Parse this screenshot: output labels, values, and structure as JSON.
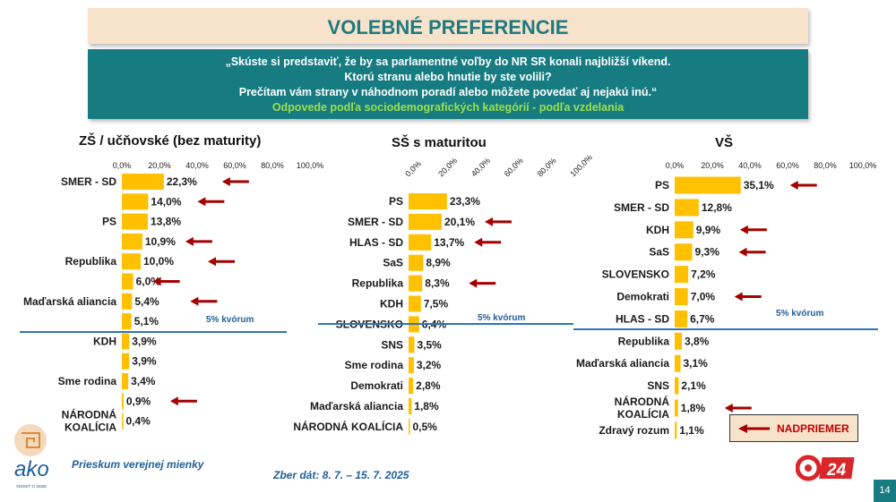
{
  "header": {
    "title": "VOLEBNÉ PREFERENCIE",
    "question_lines": [
      "„Skúste si predstaviť, že by sa parlamentné voľby do NR SR konali najbližší víkend.",
      "Ktorú stranu alebo hnutie by ste volili?",
      "Prečítam vám strany v náhodnom poradí alebo môžete povedať aj nejakú inú.“"
    ],
    "subtitle": "Odpovede podľa sociodemografických kategórií - podľa vzdelania"
  },
  "footer": {
    "survey": "Prieskum verejnej mienky",
    "date": "Zber dát: 8. 7. – 15. 7. 2025",
    "page": "14",
    "legend_label": "NADPRIEMER",
    "logo_text": "ako",
    "logo_tagline": "VEDIEŤ O SEBE",
    "brand_badge": "24"
  },
  "colors": {
    "bar": "#ffc000",
    "arrow": "#a40000",
    "line": "#2e75b6",
    "accent": "#167c82"
  },
  "chart_data": [
    {
      "type": "bar",
      "orientation": "horizontal",
      "title": "ZŠ / učňovské (bez maturity)",
      "xlim": [
        0,
        100
      ],
      "ticks": [
        "0,0%",
        "20,0%",
        "40,0%",
        "60,0%",
        "80,0%",
        "100,0%"
      ],
      "threshold_label": "5% kvórum",
      "threshold_after_index": 7,
      "categories": [
        "SMER - SD",
        "",
        "PS",
        "",
        "Republika",
        "",
        "Maďarská aliancia",
        "",
        "KDH",
        "",
        "Sme rodina",
        "",
        "NÁRODNÁ KOALÍCIA",
        ""
      ],
      "values": [
        22.3,
        14.0,
        13.8,
        10.9,
        10.0,
        6.0,
        5.4,
        5.1,
        3.9,
        3.9,
        3.4,
        0.9,
        0.4,
        null
      ],
      "labels": [
        "22,3%",
        "14,0%",
        "13,8%",
        "10,9%",
        "10,0%",
        "6,0%",
        "5,4%",
        "5,1%",
        "3,9%",
        "3,9%",
        "3,4%",
        "0,9%",
        "0,4%",
        ""
      ],
      "above_average": [
        true,
        true,
        false,
        true,
        true,
        true,
        true,
        false,
        false,
        false,
        false,
        true,
        false,
        false
      ]
    },
    {
      "type": "bar",
      "orientation": "horizontal",
      "title": "SŠ s maturitou",
      "xlim": [
        0,
        100
      ],
      "ticks": [
        "0,0%",
        "20,0%",
        "40,0%",
        "60,0%",
        "80,0%",
        "100,0%"
      ],
      "threshold_label": "5% kvórum",
      "threshold_after_index": 6,
      "categories": [
        "PS",
        "SMER - SD",
        "HLAS - SD",
        "SaS",
        "Republika",
        "KDH",
        "SLOVENSKO",
        "SNS",
        "Sme rodina",
        "Demokrati",
        "Maďarská aliancia",
        "NÁRODNÁ KOALÍCIA"
      ],
      "values": [
        23.3,
        20.1,
        13.7,
        8.9,
        8.3,
        7.5,
        6.4,
        3.5,
        3.2,
        2.8,
        1.8,
        0.5
      ],
      "labels": [
        "23,3%",
        "20,1%",
        "13,7%",
        "8,9%",
        "8,3%",
        "7,5%",
        "6,4%",
        "3,5%",
        "3,2%",
        "2,8%",
        "1,8%",
        "0,5%"
      ],
      "above_average": [
        false,
        true,
        true,
        false,
        true,
        false,
        false,
        false,
        false,
        false,
        false,
        false
      ]
    },
    {
      "type": "bar",
      "orientation": "horizontal",
      "title": "VŠ",
      "xlim": [
        0,
        100
      ],
      "ticks": [
        "0,0%",
        "20,0%",
        "40,0%",
        "60,0%",
        "80,0%",
        "100,0%"
      ],
      "threshold_label": "5% kvórum",
      "threshold_after_index": 6,
      "categories": [
        "PS",
        "SMER - SD",
        "KDH",
        "SaS",
        "SLOVENSKO",
        "Demokrati",
        "HLAS - SD",
        "Republika",
        "Maďarská aliancia",
        "SNS",
        "NÁRODNÁ KOALÍCIA",
        "Zdravý rozum"
      ],
      "values": [
        35.1,
        12.8,
        9.9,
        9.3,
        7.2,
        7.0,
        6.7,
        3.8,
        3.1,
        2.1,
        1.8,
        1.1
      ],
      "labels": [
        "35,1%",
        "12,8%",
        "9,9%",
        "9,3%",
        "7,2%",
        "7,0%",
        "6,7%",
        "3,8%",
        "3,1%",
        "2,1%",
        "1,8%",
        "1,1%"
      ],
      "above_average": [
        true,
        false,
        true,
        true,
        false,
        true,
        false,
        false,
        false,
        false,
        true,
        false
      ]
    }
  ]
}
